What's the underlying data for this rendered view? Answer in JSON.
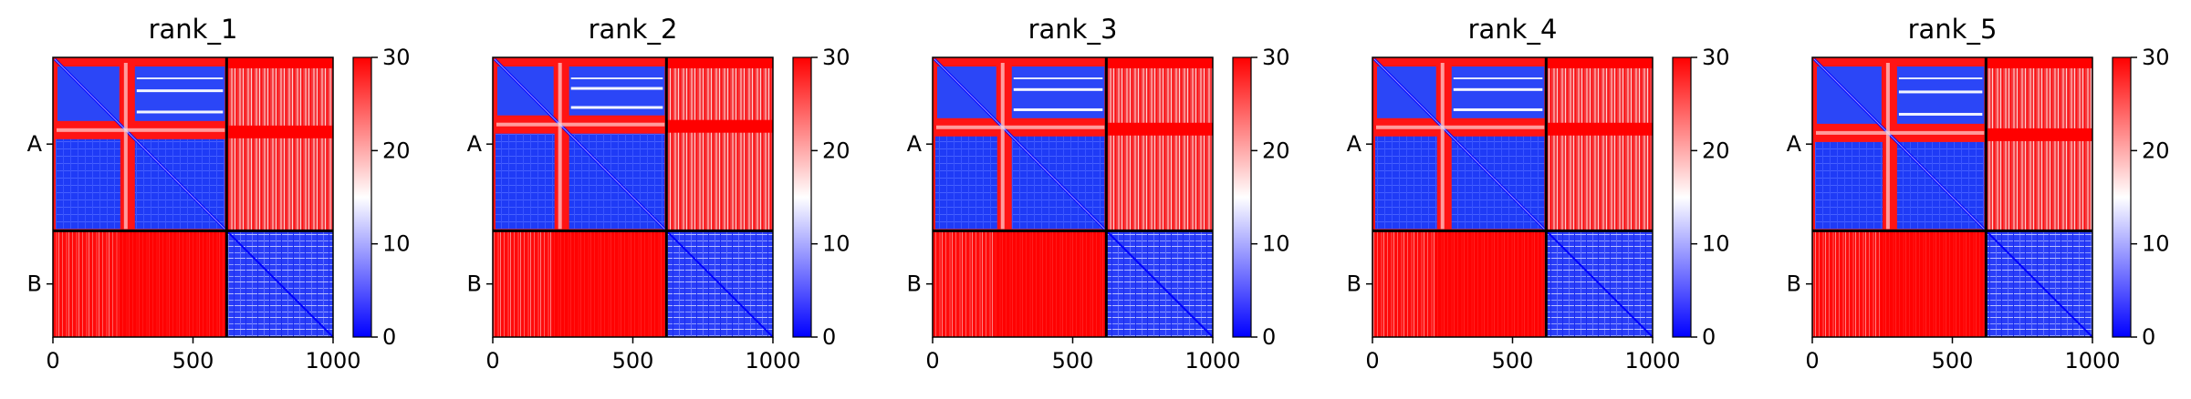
{
  "chart_data": [
    {
      "type": "heatmap",
      "title": "rank_1",
      "x_ticks": [
        "0",
        "500",
        "1000"
      ],
      "x_tick_values": [
        0,
        500,
        1000
      ],
      "y_segments": [
        "A",
        "B"
      ],
      "segment_boundary": 620,
      "xlim": [
        0,
        1000
      ],
      "colorbar": {
        "ticks": [
          "0",
          "10",
          "20",
          "30"
        ],
        "tick_values": [
          0,
          10,
          20,
          30
        ],
        "range": [
          0,
          30
        ],
        "colormap": "bwr"
      },
      "features": {
        "cross_center": 260,
        "stripe_rows": [
          0.14,
          0.27
        ]
      }
    },
    {
      "type": "heatmap",
      "title": "rank_2",
      "x_ticks": [
        "0",
        "500",
        "1000"
      ],
      "x_tick_values": [
        0,
        500,
        1000
      ],
      "y_segments": [
        "A",
        "B"
      ],
      "segment_boundary": 620,
      "xlim": [
        0,
        1000
      ],
      "colorbar": {
        "ticks": [
          "0",
          "10",
          "20",
          "30"
        ],
        "tick_values": [
          0,
          10,
          20,
          30
        ],
        "range": [
          0,
          30
        ],
        "colormap": "bwr"
      },
      "features": {
        "cross_center": 240,
        "stripe_rows": [
          0.14,
          0.27
        ]
      }
    },
    {
      "type": "heatmap",
      "title": "rank_3",
      "x_ticks": [
        "0",
        "500",
        "1000"
      ],
      "x_tick_values": [
        0,
        500,
        1000
      ],
      "y_segments": [
        "A",
        "B"
      ],
      "segment_boundary": 620,
      "xlim": [
        0,
        1000
      ],
      "colorbar": {
        "ticks": [
          "0",
          "10",
          "20",
          "30"
        ],
        "tick_values": [
          0,
          10,
          20,
          30
        ],
        "range": [
          0,
          30
        ],
        "colormap": "bwr"
      },
      "features": {
        "cross_center": 250,
        "stripe_rows": [
          0.14,
          0.27
        ]
      }
    },
    {
      "type": "heatmap",
      "title": "rank_4",
      "x_ticks": [
        "0",
        "500",
        "1000"
      ],
      "x_tick_values": [
        0,
        500,
        1000
      ],
      "y_segments": [
        "A",
        "B"
      ],
      "segment_boundary": 620,
      "xlim": [
        0,
        1000
      ],
      "colorbar": {
        "ticks": [
          "0",
          "10",
          "20",
          "30"
        ],
        "tick_values": [
          0,
          10,
          20,
          30
        ],
        "range": [
          0,
          30
        ],
        "colormap": "bwr"
      },
      "features": {
        "cross_center": 250,
        "stripe_rows": [
          0.14,
          0.27
        ]
      }
    },
    {
      "type": "heatmap",
      "title": "rank_5",
      "x_ticks": [
        "0",
        "500",
        "1000"
      ],
      "x_tick_values": [
        0,
        500,
        1000
      ],
      "y_segments": [
        "A",
        "B"
      ],
      "segment_boundary": 620,
      "xlim": [
        0,
        1000
      ],
      "colorbar": {
        "ticks": [
          "0",
          "10",
          "20",
          "30"
        ],
        "tick_values": [
          0,
          10,
          20,
          30
        ],
        "range": [
          0,
          30
        ],
        "colormap": "bwr"
      },
      "features": {
        "cross_center": 270,
        "stripe_rows": [
          0.14,
          0.27
        ]
      }
    }
  ],
  "colors": {
    "high": "#ff0000",
    "mid": "#ffffff",
    "low": "#0000ff",
    "divider": "#000000"
  }
}
